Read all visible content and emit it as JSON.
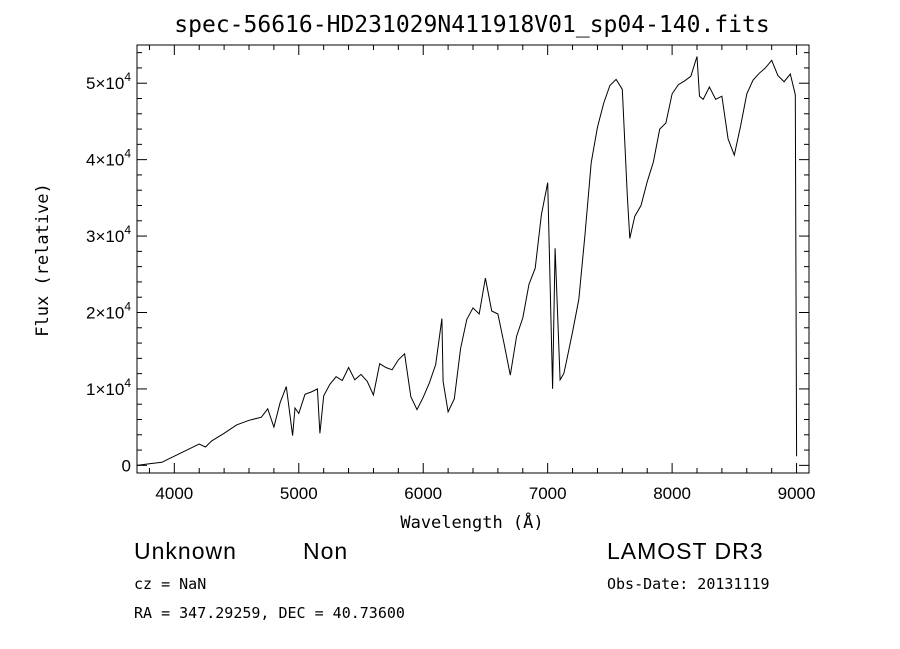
{
  "chart_data": {
    "type": "line",
    "title": "spec-56616-HD231029N411918V01_sp04-140.fits",
    "xlabel": "Wavelength (Å)",
    "ylabel": "Flux (relative)",
    "xlim": [
      3700,
      9100
    ],
    "ylim": [
      -1000,
      55000
    ],
    "x_ticks": [
      4000,
      5000,
      6000,
      7000,
      8000,
      9000
    ],
    "x_tick_labels": [
      "4000",
      "5000",
      "6000",
      "7000",
      "8000",
      "9000"
    ],
    "y_ticks": [
      0,
      10000,
      20000,
      30000,
      40000,
      50000
    ],
    "y_tick_labels": [
      {
        "mantissa": "0",
        "exp": ""
      },
      {
        "mantissa": "1×10",
        "exp": "4"
      },
      {
        "mantissa": "2×10",
        "exp": "4"
      },
      {
        "mantissa": "3×10",
        "exp": "4"
      },
      {
        "mantissa": "4×10",
        "exp": "4"
      },
      {
        "mantissa": "5×10",
        "exp": "4"
      }
    ],
    "series": [
      {
        "name": "flux",
        "x": [
          3700,
          3800,
          3900,
          3950,
          4000,
          4100,
          4200,
          4250,
          4300,
          4400,
          4500,
          4600,
          4700,
          4750,
          4800,
          4850,
          4900,
          4950,
          4970,
          5000,
          5050,
          5100,
          5150,
          5170,
          5200,
          5250,
          5300,
          5350,
          5400,
          5450,
          5500,
          5550,
          5600,
          5650,
          5700,
          5750,
          5800,
          5850,
          5900,
          5950,
          6000,
          6050,
          6100,
          6150,
          6160,
          6200,
          6250,
          6300,
          6350,
          6400,
          6450,
          6500,
          6550,
          6600,
          6650,
          6700,
          6750,
          6800,
          6850,
          6900,
          6950,
          7000,
          7040,
          7060,
          7100,
          7130,
          7150,
          7200,
          7250,
          7300,
          7350,
          7400,
          7450,
          7500,
          7550,
          7600,
          7640,
          7660,
          7700,
          7750,
          7800,
          7850,
          7900,
          7950,
          8000,
          8050,
          8100,
          8150,
          8200,
          8220,
          8250,
          8300,
          8350,
          8400,
          8450,
          8500,
          8550,
          8600,
          8650,
          8700,
          8750,
          8800,
          8850,
          8900,
          8950,
          8990,
          9000
        ],
        "y": [
          0,
          200,
          400,
          800,
          1200,
          2000,
          2800,
          2400,
          3200,
          4200,
          5300,
          5900,
          6300,
          7400,
          5000,
          8200,
          10300,
          3900,
          7500,
          6800,
          9300,
          9600,
          10000,
          4200,
          9100,
          10600,
          11600,
          11100,
          12800,
          11200,
          11900,
          11000,
          9200,
          13300,
          12800,
          12500,
          13800,
          14600,
          9000,
          7300,
          8900,
          10800,
          13200,
          19200,
          11000,
          7000,
          8700,
          15300,
          19100,
          20600,
          19800,
          24500,
          20200,
          19800,
          15900,
          11800,
          16900,
          19300,
          23700,
          25800,
          32800,
          37000,
          10000,
          28400,
          11200,
          12000,
          13500,
          17500,
          21700,
          30200,
          39600,
          44200,
          47400,
          49700,
          50500,
          49200,
          35300,
          29700,
          32600,
          34000,
          37100,
          39700,
          44000,
          44800,
          48600,
          49800,
          50300,
          50900,
          53500,
          48300,
          47900,
          49500,
          47900,
          48300,
          42700,
          40600,
          44400,
          48600,
          50400,
          51300,
          52000,
          53000,
          51000,
          50200,
          51200,
          48500,
          1200
        ]
      }
    ]
  },
  "footer": {
    "object_class": "Unknown",
    "object_subclass": "Non",
    "survey": "LAMOST DR3",
    "cz": "cz = NaN",
    "obs_date": "Obs-Date: 20131119",
    "coords": "RA = 347.29259, DEC =  40.73600"
  }
}
